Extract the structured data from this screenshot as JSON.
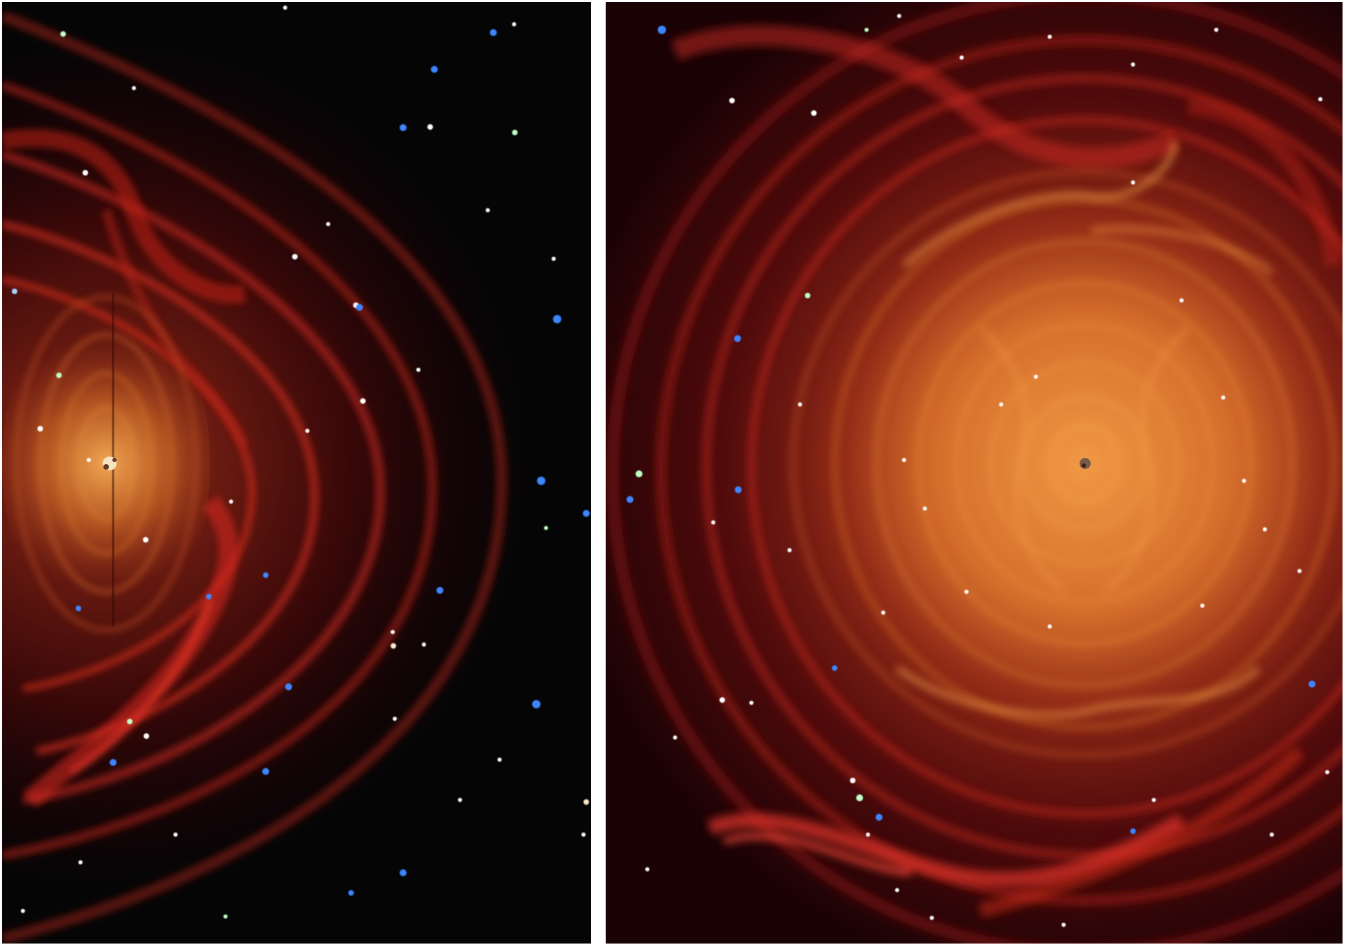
{
  "figure": {
    "background_color": "#ffffff",
    "left_panel": {
      "icon": "gravitational-wave-ripples-icon",
      "space_color": "#050506",
      "wave_colors": [
        "#5a0c0c",
        "#9a1c18",
        "#d2291f",
        "#e0792a",
        "#f2a040"
      ],
      "star_colors": [
        "#ffffff",
        "#a9d3ff",
        "#3d86ff",
        "#bfffc8",
        "#ffe8c8"
      ]
    },
    "right_panel": {
      "icon": "gravitational-wave-ripples-icon",
      "space_color": "#0a0203",
      "wave_colors": [
        "#5a0c0c",
        "#9a1c18",
        "#d2291f",
        "#e0792a",
        "#f2a040"
      ],
      "star_colors": [
        "#ffffff",
        "#a9d3ff",
        "#3d86ff",
        "#bfffc8",
        "#ffe8c8"
      ]
    }
  }
}
